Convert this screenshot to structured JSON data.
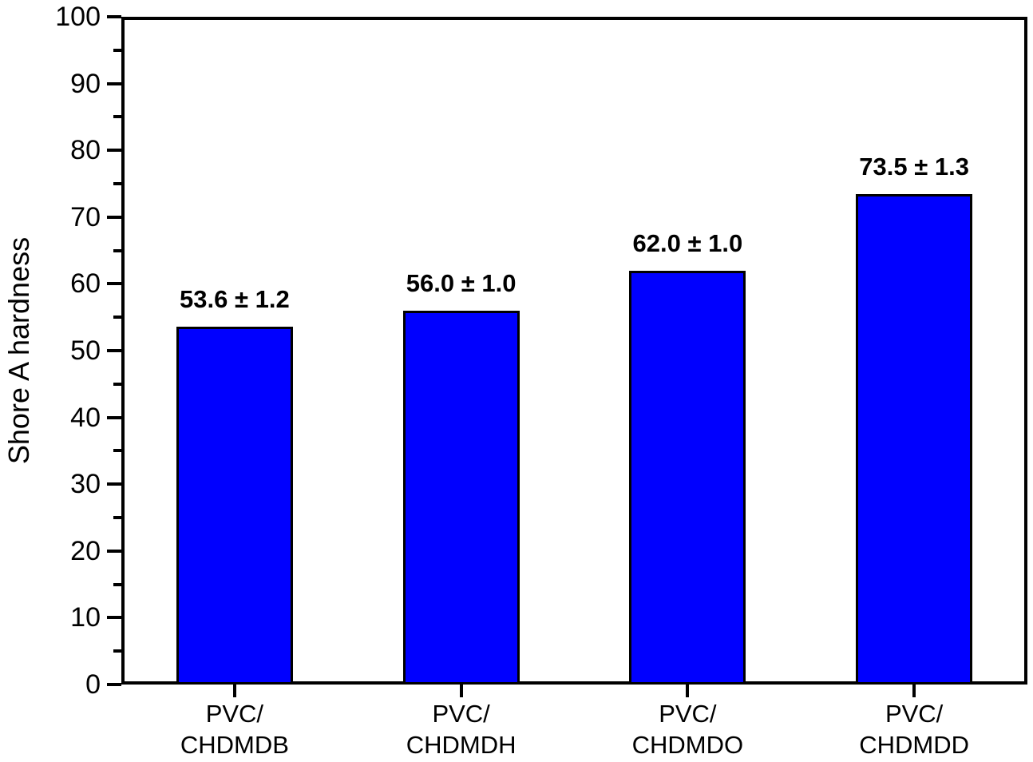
{
  "figure": {
    "background_color": "#ffffff",
    "text_color": "#000000",
    "axis_color": "#000000"
  },
  "chart_data": {
    "type": "bar",
    "title": "",
    "xlabel": "",
    "ylabel": "Shore A hardness",
    "ylim": [
      0,
      100
    ],
    "y_major_tick_step": 10,
    "y_minor_tick_step": 5,
    "grid": false,
    "legend": null,
    "categories": [
      "PVC/\nCHDMDB",
      "PVC/\nCHDMDH",
      "PVC/\nCHDMDO",
      "PVC/\nCHDMDD"
    ],
    "values": [
      53.6,
      56.0,
      62.0,
      73.5
    ],
    "errors": [
      1.2,
      1.0,
      1.0,
      1.3
    ],
    "value_labels": [
      "53.6 ± 1.2",
      "56.0 ± 1.0",
      "62.0 ± 1.0",
      "73.5 ± 1.3"
    ],
    "bar_fill_color": "#0000ff",
    "bar_border_color": "#000000"
  }
}
